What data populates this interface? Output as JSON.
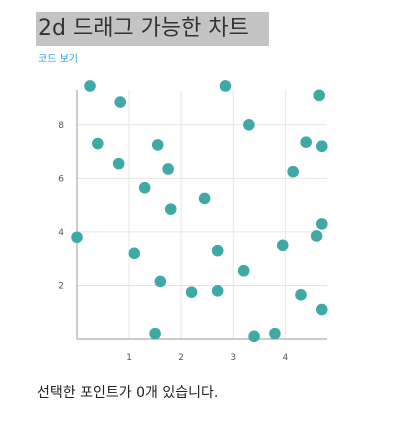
{
  "page": {
    "title": "2d 드래그 가능한 차트",
    "code_link": "코드 보기",
    "status_prefix": "선택한 포인트가 ",
    "selected_count": "0",
    "status_suffix": "개 있습니다."
  },
  "colors": {
    "point": "#3fa9a6",
    "title_bg": "#c4c4c4",
    "link": "#2a9fd6"
  },
  "chart_data": {
    "type": "scatter",
    "title": "",
    "xlabel": "",
    "ylabel": "",
    "xlim": [
      0,
      4.8
    ],
    "ylim": [
      0,
      9.3
    ],
    "xticks": [
      1,
      2,
      3,
      4
    ],
    "yticks": [
      2,
      4,
      6,
      8
    ],
    "grid": true,
    "points": [
      {
        "x": 0.25,
        "y": 9.45
      },
      {
        "x": 0.83,
        "y": 8.85
      },
      {
        "x": 2.85,
        "y": 9.45
      },
      {
        "x": 4.65,
        "y": 9.1
      },
      {
        "x": 0.4,
        "y": 7.3
      },
      {
        "x": 1.55,
        "y": 7.25
      },
      {
        "x": 3.3,
        "y": 8.0
      },
      {
        "x": 4.4,
        "y": 7.35
      },
      {
        "x": 4.7,
        "y": 7.2
      },
      {
        "x": 0.8,
        "y": 6.55
      },
      {
        "x": 1.75,
        "y": 6.35
      },
      {
        "x": 4.15,
        "y": 6.25
      },
      {
        "x": 1.3,
        "y": 5.65
      },
      {
        "x": 2.45,
        "y": 5.25
      },
      {
        "x": 1.8,
        "y": 4.85
      },
      {
        "x": 0.0,
        "y": 3.8
      },
      {
        "x": 4.7,
        "y": 4.3
      },
      {
        "x": 4.6,
        "y": 3.85
      },
      {
        "x": 3.95,
        "y": 3.5
      },
      {
        "x": 1.1,
        "y": 3.2
      },
      {
        "x": 2.7,
        "y": 3.3
      },
      {
        "x": 3.2,
        "y": 2.55
      },
      {
        "x": 1.6,
        "y": 2.15
      },
      {
        "x": 2.2,
        "y": 1.75
      },
      {
        "x": 2.7,
        "y": 1.8
      },
      {
        "x": 4.3,
        "y": 1.65
      },
      {
        "x": 4.7,
        "y": 1.1
      },
      {
        "x": 1.5,
        "y": 0.2
      },
      {
        "x": 3.4,
        "y": 0.1
      },
      {
        "x": 3.8,
        "y": 0.2
      }
    ]
  }
}
